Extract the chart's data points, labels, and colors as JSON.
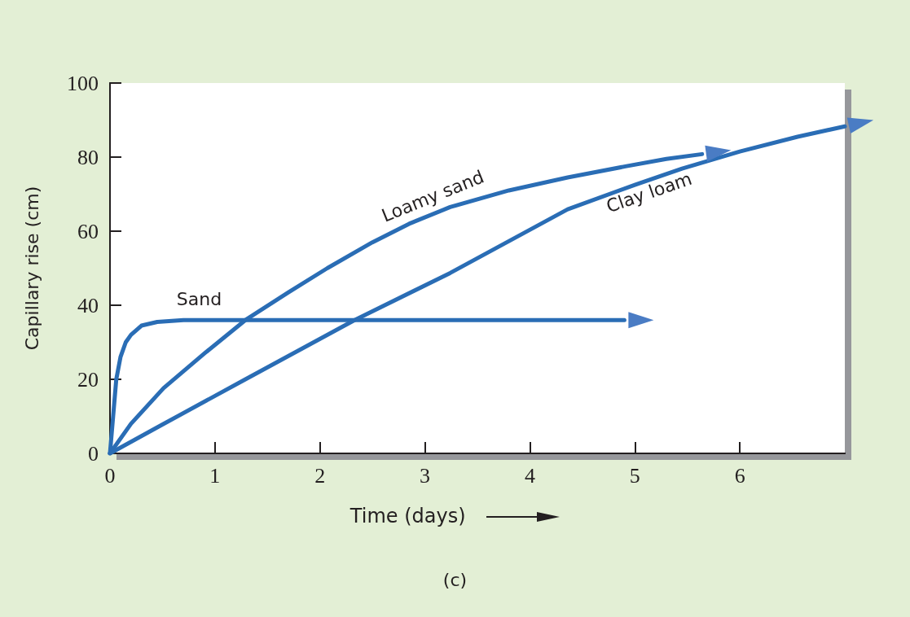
{
  "chart_data": {
    "type": "line",
    "xlabel": "Time (days)",
    "ylabel": "Capillary rise (cm)",
    "xlim": [
      0,
      7
    ],
    "xticks": [
      0,
      1,
      2,
      3,
      4,
      5,
      6
    ],
    "ylim": [
      0,
      100
    ],
    "yticks": [
      0,
      20,
      40,
      60,
      80,
      100
    ],
    "grid": false,
    "annotations": [
      "(c)"
    ],
    "series": [
      {
        "name": "Sand",
        "color": "#2a6db5",
        "x": [
          0,
          0.03,
          0.06,
          0.1,
          0.15,
          0.2,
          0.3,
          0.45,
          0.7,
          1,
          2,
          3,
          4,
          4.9
        ],
        "values": [
          0,
          10,
          20,
          26,
          30,
          32,
          34.5,
          35.5,
          36,
          36,
          36,
          36,
          36,
          36
        ]
      },
      {
        "name": "Loamy sand",
        "color": "#2a6db5",
        "x": [
          0,
          0.2,
          0.51,
          0.9,
          1.29,
          1.7,
          2.07,
          2.5,
          2.85,
          3.24,
          3.8,
          4.36,
          4.91,
          5.3,
          5.64
        ],
        "values": [
          0,
          8,
          17.6,
          27,
          36,
          43.5,
          50,
          57,
          62,
          66.5,
          71,
          74.5,
          77.5,
          79.5,
          80.8
        ]
      },
      {
        "name": "Clay loam",
        "color": "#2a6db5",
        "x": [
          0,
          0.5,
          1.29,
          2.33,
          3.24,
          3.63,
          4.36,
          5,
          5.45,
          6,
          6.55,
          7
        ],
        "values": [
          0,
          7.8,
          20,
          36,
          48.7,
          54.7,
          65.9,
          72.5,
          76.9,
          81.5,
          85.5,
          88.3
        ]
      }
    ]
  }
}
